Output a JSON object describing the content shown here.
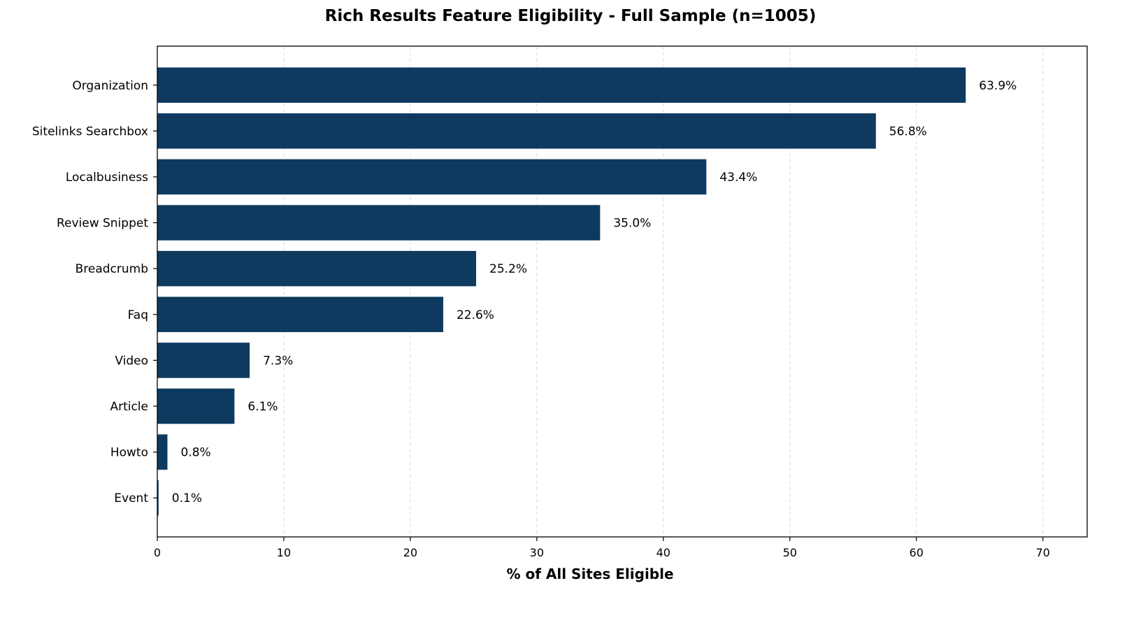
{
  "chart_data": {
    "type": "bar",
    "orientation": "horizontal",
    "title": "Rich Results Feature Eligibility - Full Sample (n=1005)",
    "xlabel": "% of All Sites Eligible",
    "ylabel": "",
    "categories": [
      "Organization",
      "Sitelinks Searchbox",
      "Localbusiness",
      "Review Snippet",
      "Breadcrumb",
      "Faq",
      "Video",
      "Article",
      "Howto",
      "Event"
    ],
    "values": [
      63.9,
      56.8,
      43.4,
      35.0,
      25.2,
      22.6,
      7.3,
      6.1,
      0.8,
      0.1
    ],
    "value_labels": [
      "63.9%",
      "56.8%",
      "43.4%",
      "35.0%",
      "25.2%",
      "22.6%",
      "7.3%",
      "6.1%",
      "0.8%",
      "0.1%"
    ],
    "xlim": [
      0,
      73.5
    ],
    "xticks": [
      0,
      10,
      20,
      30,
      40,
      50,
      60,
      70
    ],
    "xtick_labels": [
      "0",
      "10",
      "20",
      "30",
      "40",
      "50",
      "60",
      "70"
    ],
    "grid": "vertical dashed",
    "legend": "none",
    "bar_color": "#0f3a5f"
  }
}
